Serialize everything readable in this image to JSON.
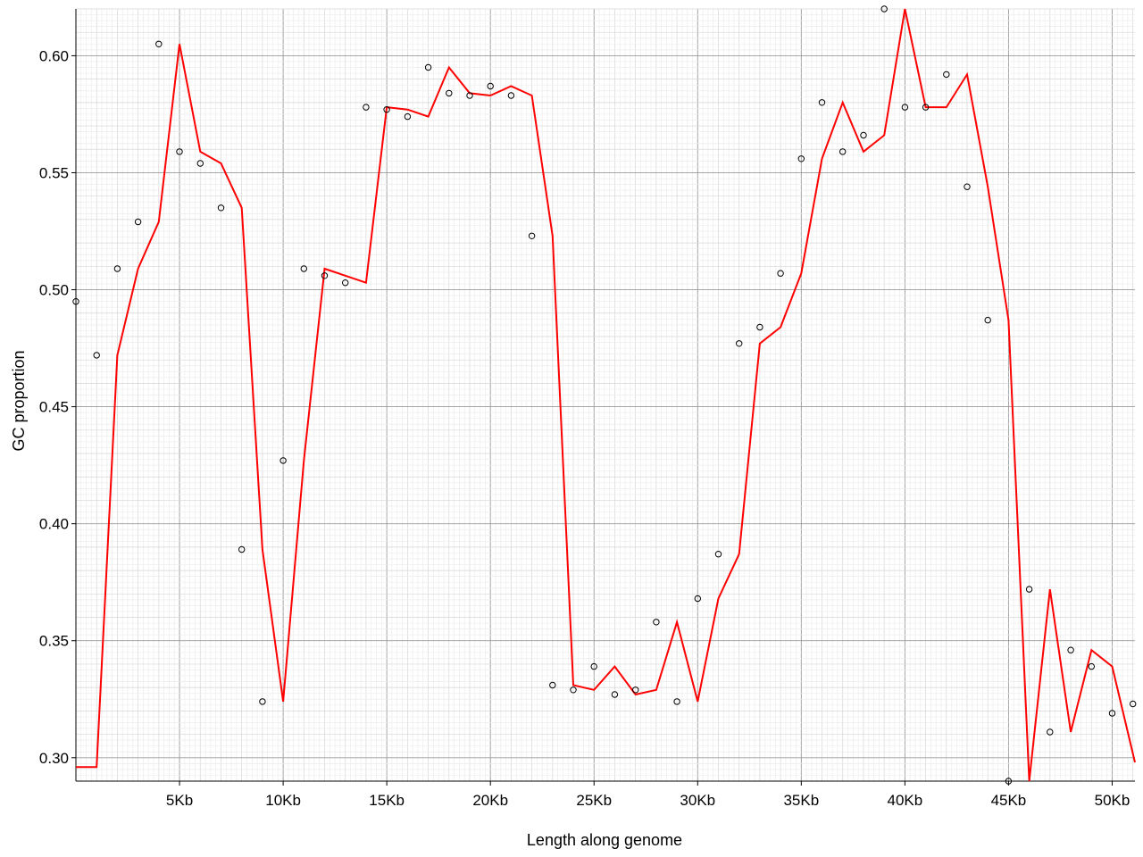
{
  "chart_data": {
    "type": "line",
    "xlabel": "Length along genome",
    "ylabel": "GC proportion",
    "xlim": [
      0,
      51100
    ],
    "ylim": [
      0.29,
      0.62
    ],
    "grid": true,
    "x_ticks": [
      {
        "value": 5000,
        "label": "5Kb"
      },
      {
        "value": 10000,
        "label": "10Kb"
      },
      {
        "value": 15000,
        "label": "15Kb"
      },
      {
        "value": 20000,
        "label": "20Kb"
      },
      {
        "value": 25000,
        "label": "25Kb"
      },
      {
        "value": 30000,
        "label": "30Kb"
      },
      {
        "value": 35000,
        "label": "35Kb"
      },
      {
        "value": 40000,
        "label": "40Kb"
      },
      {
        "value": 45000,
        "label": "45Kb"
      },
      {
        "value": 50000,
        "label": "50Kb"
      }
    ],
    "y_ticks": [
      {
        "value": 0.3,
        "label": "0.30"
      },
      {
        "value": 0.35,
        "label": "0.35"
      },
      {
        "value": 0.4,
        "label": "0.40"
      },
      {
        "value": 0.45,
        "label": "0.45"
      },
      {
        "value": 0.5,
        "label": "0.50"
      },
      {
        "value": 0.55,
        "label": "0.55"
      },
      {
        "value": 0.6,
        "label": "0.60"
      }
    ],
    "series": [
      {
        "kind": "scatter",
        "marker": "open-circle",
        "color": "#000000",
        "x": [
          0,
          1000,
          2000,
          3000,
          4000,
          5000,
          6000,
          7000,
          8000,
          9000,
          10000,
          11000,
          12000,
          13000,
          14000,
          15000,
          16000,
          17000,
          18000,
          19000,
          20000,
          21000,
          22000,
          23000,
          24000,
          25000,
          26000,
          27000,
          28000,
          29000,
          30000,
          31000,
          32000,
          33000,
          34000,
          35000,
          36000,
          37000,
          38000,
          39000,
          40000,
          41000,
          42000,
          43000,
          44000,
          45000,
          46000,
          47000,
          48000,
          49000,
          50000,
          51000
        ],
        "y": [
          0.495,
          0.472,
          0.509,
          0.529,
          0.605,
          0.559,
          0.554,
          0.535,
          0.389,
          0.324,
          0.427,
          0.509,
          0.506,
          0.503,
          0.578,
          0.577,
          0.574,
          0.595,
          0.584,
          0.583,
          0.587,
          0.583,
          0.523,
          0.331,
          0.329,
          0.339,
          0.327,
          0.329,
          0.358,
          0.324,
          0.368,
          0.387,
          0.477,
          0.484,
          0.507,
          0.556,
          0.58,
          0.559,
          0.566,
          0.62,
          0.578,
          0.578,
          0.592,
          0.544,
          0.487,
          0.29,
          0.372,
          0.311,
          0.346,
          0.339,
          0.319,
          0.323
        ]
      },
      {
        "kind": "line",
        "color": "#ff0000",
        "x": [
          0,
          1000,
          2000,
          3000,
          4000,
          5000,
          6000,
          7000,
          8000,
          9000,
          10000,
          11000,
          12000,
          13000,
          14000,
          15000,
          16000,
          17000,
          18000,
          19000,
          20000,
          21000,
          22000,
          23000,
          24000,
          25000,
          26000,
          27000,
          28000,
          29000,
          30000,
          31000,
          32000,
          33000,
          34000,
          35000,
          36000,
          37000,
          38000,
          39000,
          40000,
          41000,
          42000,
          43000,
          44000,
          45000,
          46000,
          47000,
          48000,
          49000,
          50000,
          51100
        ],
        "y": [
          0.296,
          0.296,
          0.472,
          0.509,
          0.529,
          0.605,
          0.559,
          0.554,
          0.535,
          0.389,
          0.324,
          0.427,
          0.509,
          0.506,
          0.503,
          0.578,
          0.577,
          0.574,
          0.595,
          0.584,
          0.583,
          0.587,
          0.583,
          0.523,
          0.331,
          0.329,
          0.339,
          0.327,
          0.329,
          0.358,
          0.324,
          0.368,
          0.387,
          0.477,
          0.484,
          0.507,
          0.556,
          0.58,
          0.559,
          0.566,
          0.62,
          0.578,
          0.578,
          0.592,
          0.544,
          0.487,
          0.29,
          0.372,
          0.311,
          0.346,
          0.339,
          0.298
        ]
      }
    ]
  }
}
